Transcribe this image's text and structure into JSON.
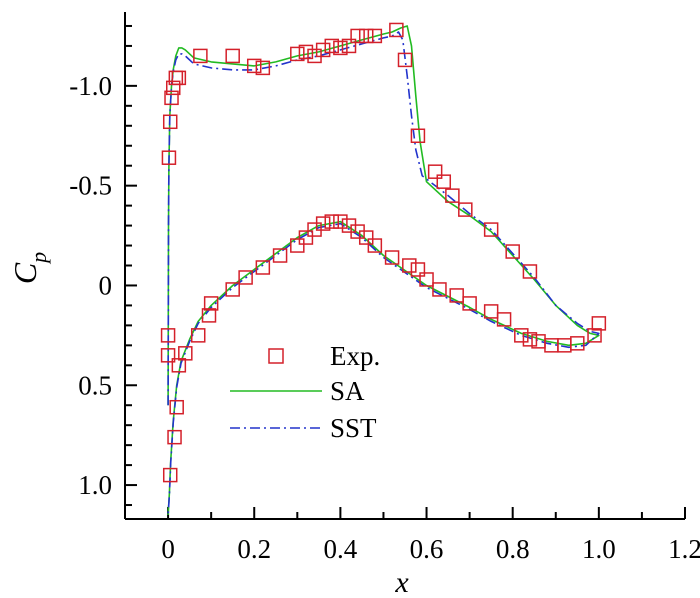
{
  "chart_data": {
    "type": "line",
    "title": "",
    "xlabel": "x",
    "ylabel": "C",
    "ylabel_subscript": "p",
    "xlim": [
      -0.1,
      1.2
    ],
    "ylim": [
      -1.37,
      1.17
    ],
    "y_inverted": true,
    "x_ticks": [
      0,
      0.2,
      0.4,
      0.6,
      0.8,
      1.0,
      1.2
    ],
    "x_tick_labels": [
      "0",
      "0.2",
      "0.4",
      "0.6",
      "0.8",
      "1.0",
      "1.2"
    ],
    "y_ticks": [
      -1.0,
      -0.5,
      0,
      0.5,
      1.0
    ],
    "y_tick_labels": [
      "-1.0",
      "-0.5",
      "0",
      "0.5",
      "1.0"
    ],
    "legend": [
      "Exp.",
      "SA",
      "SST"
    ],
    "legend_position": "center",
    "series": [
      {
        "name": "Exp.",
        "style": "markers",
        "marker": "square",
        "color": "#d4202a",
        "x": [
          0.0,
          0.002,
          0.005,
          0.008,
          0.012,
          0.018,
          0.025,
          0.075,
          0.15,
          0.2,
          0.22,
          0.3,
          0.32,
          0.34,
          0.36,
          0.38,
          0.4,
          0.42,
          0.44,
          0.46,
          0.48,
          0.53,
          0.55,
          0.58,
          0.62,
          0.64,
          0.66,
          0.69,
          0.75,
          0.8,
          0.84,
          1.0,
          0.99,
          0.95,
          0.92,
          0.89,
          0.86,
          0.84,
          0.82,
          0.78,
          0.75,
          0.7,
          0.67,
          0.63,
          0.6,
          0.58,
          0.56,
          0.52,
          0.48,
          0.46,
          0.44,
          0.42,
          0.4,
          0.38,
          0.36,
          0.34,
          0.32,
          0.3,
          0.26,
          0.22,
          0.18,
          0.15,
          0.1,
          0.095,
          0.07,
          0.04,
          0.025,
          0.02,
          0.015,
          0.005,
          0.0
        ],
        "y": [
          0.25,
          -0.64,
          -0.82,
          -0.94,
          -0.99,
          -1.04,
          -1.04,
          -1.15,
          -1.15,
          -1.1,
          -1.09,
          -1.16,
          -1.17,
          -1.15,
          -1.18,
          -1.2,
          -1.19,
          -1.2,
          -1.25,
          -1.25,
          -1.25,
          -1.28,
          -1.13,
          -0.75,
          -0.57,
          -0.52,
          -0.45,
          -0.38,
          -0.28,
          -0.17,
          -0.07,
          0.19,
          0.25,
          0.29,
          0.3,
          0.3,
          0.28,
          0.27,
          0.25,
          0.17,
          0.13,
          0.09,
          0.05,
          0.02,
          -0.03,
          -0.08,
          -0.1,
          -0.14,
          -0.2,
          -0.24,
          -0.27,
          -0.3,
          -0.32,
          -0.32,
          -0.31,
          -0.28,
          -0.24,
          -0.2,
          -0.15,
          -0.09,
          -0.04,
          0.02,
          0.09,
          0.15,
          0.25,
          0.34,
          0.4,
          0.61,
          0.76,
          0.95,
          0.35
        ]
      },
      {
        "name": "SA",
        "style": "solid",
        "color": "#22bb22",
        "x": [
          0.0,
          0.001,
          0.002,
          0.004,
          0.008,
          0.012,
          0.018,
          0.025,
          0.032,
          0.04,
          0.06,
          0.1,
          0.15,
          0.2,
          0.25,
          0.3,
          0.35,
          0.4,
          0.45,
          0.5,
          0.52,
          0.54,
          0.555,
          0.565,
          0.575,
          0.585,
          0.6,
          0.65,
          0.7,
          0.75,
          0.8,
          0.85,
          0.9,
          0.95,
          0.98,
          1.0,
          0.97,
          0.93,
          0.88,
          0.82,
          0.75,
          0.7,
          0.6,
          0.5,
          0.45,
          0.4,
          0.35,
          0.3,
          0.25,
          0.2,
          0.15,
          0.1,
          0.07,
          0.05,
          0.03,
          0.02,
          0.012,
          0.006,
          0.003,
          0.0
        ],
        "y": [
          0.6,
          -0.3,
          -0.6,
          -0.85,
          -1.0,
          -1.08,
          -1.15,
          -1.19,
          -1.19,
          -1.18,
          -1.14,
          -1.12,
          -1.11,
          -1.1,
          -1.12,
          -1.15,
          -1.17,
          -1.2,
          -1.23,
          -1.26,
          -1.27,
          -1.29,
          -1.3,
          -1.2,
          -0.95,
          -0.72,
          -0.52,
          -0.42,
          -0.35,
          -0.27,
          -0.15,
          -0.03,
          0.1,
          0.2,
          0.24,
          0.25,
          0.29,
          0.3,
          0.28,
          0.24,
          0.17,
          0.11,
          0.0,
          -0.15,
          -0.25,
          -0.32,
          -0.3,
          -0.24,
          -0.16,
          -0.08,
          0.0,
          0.1,
          0.18,
          0.27,
          0.38,
          0.5,
          0.68,
          0.88,
          1.04,
          1.15
        ]
      },
      {
        "name": "SST",
        "style": "dashdot",
        "color": "#2233cc",
        "x": [
          0.0,
          0.001,
          0.002,
          0.004,
          0.008,
          0.012,
          0.018,
          0.025,
          0.032,
          0.04,
          0.06,
          0.1,
          0.15,
          0.2,
          0.25,
          0.3,
          0.35,
          0.4,
          0.45,
          0.5,
          0.52,
          0.535,
          0.545,
          0.555,
          0.565,
          0.575,
          0.59,
          0.65,
          0.7,
          0.75,
          0.8,
          0.85,
          0.9,
          0.95,
          0.98,
          1.0,
          0.97,
          0.93,
          0.88,
          0.82,
          0.75,
          0.7,
          0.6,
          0.5,
          0.45,
          0.4,
          0.35,
          0.3,
          0.25,
          0.2,
          0.15,
          0.1,
          0.07,
          0.05,
          0.03,
          0.02,
          0.012,
          0.006,
          0.003,
          0.0
        ],
        "y": [
          0.6,
          -0.3,
          -0.6,
          -0.85,
          -1.0,
          -1.07,
          -1.13,
          -1.16,
          -1.16,
          -1.15,
          -1.11,
          -1.09,
          -1.08,
          -1.08,
          -1.1,
          -1.13,
          -1.15,
          -1.18,
          -1.21,
          -1.24,
          -1.25,
          -1.27,
          -1.23,
          -1.05,
          -0.85,
          -0.68,
          -0.55,
          -0.45,
          -0.36,
          -0.28,
          -0.16,
          -0.04,
          0.1,
          0.19,
          0.23,
          0.24,
          0.3,
          0.31,
          0.29,
          0.25,
          0.18,
          0.12,
          0.01,
          -0.14,
          -0.24,
          -0.31,
          -0.29,
          -0.23,
          -0.15,
          -0.07,
          0.01,
          0.11,
          0.19,
          0.28,
          0.39,
          0.51,
          0.69,
          0.89,
          1.05,
          1.15
        ]
      }
    ]
  }
}
